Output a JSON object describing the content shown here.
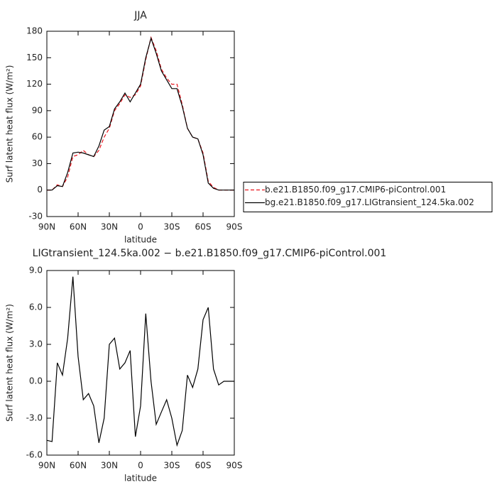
{
  "chart_data": [
    {
      "type": "line",
      "title": "JJA",
      "xlabel": "latitude",
      "ylabel": "Surf latent heat flux (W/m²)",
      "x": [
        90,
        85,
        80,
        75,
        70,
        65,
        60,
        55,
        50,
        45,
        40,
        35,
        30,
        25,
        20,
        15,
        10,
        5,
        0,
        -5,
        -10,
        -15,
        -20,
        -25,
        -30,
        -35,
        -40,
        -45,
        -50,
        -55,
        -60,
        -65,
        -70,
        -75,
        -80,
        -85,
        -90
      ],
      "series": [
        {
          "name": "b.e21.B1850.f09_g17.CMIP6-piControl.001",
          "color": "#e8141c",
          "dash": true,
          "values": [
            0,
            0,
            6,
            4,
            15,
            38,
            40,
            45,
            40,
            38,
            45,
            60,
            70,
            90,
            98,
            108,
            105,
            108,
            118,
            148,
            173,
            158,
            137,
            127,
            120,
            120,
            97,
            70,
            60,
            58,
            42,
            10,
            3,
            0,
            0,
            0,
            0
          ]
        },
        {
          "name": "bg.e21.B1850.f09_g17.LIGtransient_124.5ka.002",
          "color": "#000000",
          "dash": false,
          "values": [
            0,
            0,
            5,
            4,
            20,
            42,
            43,
            42,
            40,
            38,
            50,
            68,
            72,
            92,
            100,
            110,
            100,
            110,
            120,
            150,
            172,
            155,
            135,
            125,
            115,
            115,
            95,
            70,
            60,
            58,
            40,
            8,
            2,
            0,
            0,
            0,
            0
          ]
        }
      ],
      "xlim": [
        90,
        -90
      ],
      "xticks": [
        {
          "value": 90,
          "label": "90N"
        },
        {
          "value": 60,
          "label": "60N"
        },
        {
          "value": 30,
          "label": "30N"
        },
        0,
        {
          "value": -30,
          "label": "30S"
        },
        {
          "value": -60,
          "label": "60S"
        },
        {
          "value": -90,
          "label": "90S"
        }
      ],
      "ylim": [
        -30,
        180
      ],
      "yticks": [
        -30,
        0,
        30,
        60,
        90,
        120,
        150,
        180
      ],
      "legend": "right"
    },
    {
      "type": "line",
      "title": "LIGtransient_124.5ka.002 − b.e21.B1850.f09_g17.CMIP6-piControl.001",
      "xlabel": "latitude",
      "ylabel": "Surf latent heat flux (W/m²)",
      "x": [
        90,
        85,
        80,
        75,
        70,
        65,
        60,
        55,
        50,
        45,
        40,
        35,
        30,
        25,
        20,
        15,
        10,
        5,
        0,
        -5,
        -10,
        -15,
        -20,
        -25,
        -30,
        -35,
        -40,
        -45,
        -50,
        -55,
        -60,
        -65,
        -70,
        -75,
        -80,
        -85,
        -90
      ],
      "series": [
        {
          "color": "#000000",
          "dash": false,
          "values": [
            -4.8,
            -4.9,
            1.5,
            0.5,
            3.5,
            8.5,
            2,
            -1.5,
            -1,
            -2,
            -5,
            -3,
            3,
            3.5,
            1,
            1.5,
            2.5,
            -4.5,
            -2,
            5.5,
            0,
            -3.5,
            -2.5,
            -1.5,
            -3,
            -5.2,
            -4,
            0.5,
            -0.5,
            1,
            5,
            6,
            1,
            -0.3,
            0,
            0,
            0
          ]
        }
      ],
      "xlim": [
        90,
        -90
      ],
      "xticks": [
        {
          "value": 90,
          "label": "90N"
        },
        {
          "value": 60,
          "label": "60N"
        },
        {
          "value": 30,
          "label": "30N"
        },
        0,
        {
          "value": -30,
          "label": "30S"
        },
        {
          "value": -60,
          "label": "60S"
        },
        {
          "value": -90,
          "label": "90S"
        }
      ],
      "ylim": [
        -6,
        9
      ],
      "yticks": [
        {
          "value": -6,
          "label": "-6.0"
        },
        {
          "value": -3,
          "label": "-3.0"
        },
        {
          "value": 0,
          "label": "0.0"
        },
        {
          "value": 3,
          "label": "3.0"
        },
        {
          "value": 6,
          "label": "6.0"
        },
        {
          "value": 9,
          "label": "9.0"
        }
      ]
    }
  ]
}
